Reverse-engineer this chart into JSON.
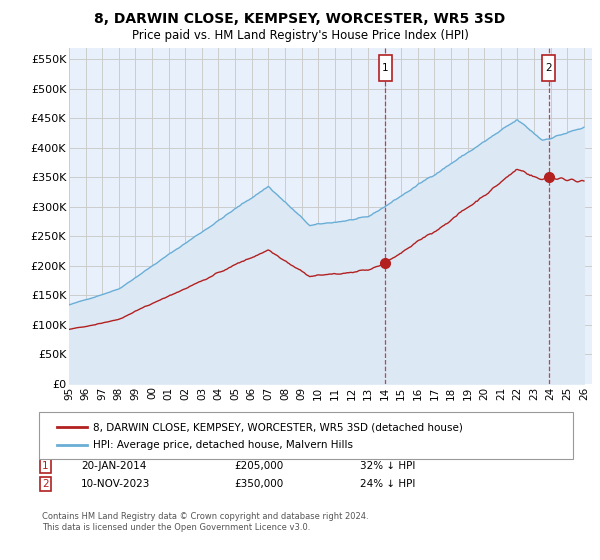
{
  "title": "8, DARWIN CLOSE, KEMPSEY, WORCESTER, WR5 3SD",
  "subtitle": "Price paid vs. HM Land Registry's House Price Index (HPI)",
  "ylabel_ticks": [
    "£0",
    "£50K",
    "£100K",
    "£150K",
    "£200K",
    "£250K",
    "£300K",
    "£350K",
    "£400K",
    "£450K",
    "£500K",
    "£550K"
  ],
  "ytick_values": [
    0,
    50000,
    100000,
    150000,
    200000,
    250000,
    300000,
    350000,
    400000,
    450000,
    500000,
    550000
  ],
  "ylim": [
    0,
    570000
  ],
  "xlim_start": 1995.0,
  "xlim_end": 2026.5,
  "hpi_color": "#6aaed6",
  "hpi_fill_color": "#dce9f5",
  "property_color": "#b22020",
  "point1_x": 2014.05,
  "point1_y": 205000,
  "point1_label": "1",
  "point2_x": 2023.87,
  "point2_y": 350000,
  "point2_label": "2",
  "vline1_x": 2014.05,
  "vline2_x": 2023.87,
  "legend_property": "8, DARWIN CLOSE, KEMPSEY, WORCESTER, WR5 3SD (detached house)",
  "legend_hpi": "HPI: Average price, detached house, Malvern Hills",
  "annotation1_date": "20-JAN-2014",
  "annotation1_price": "£205,000",
  "annotation1_hpi": "32% ↓ HPI",
  "annotation2_date": "10-NOV-2023",
  "annotation2_price": "£350,000",
  "annotation2_hpi": "24% ↓ HPI",
  "footer": "Contains HM Land Registry data © Crown copyright and database right 2024.\nThis data is licensed under the Open Government Licence v3.0.",
  "background_color": "#ffffff",
  "grid_color": "#cccccc",
  "plot_bg_color": "#e8f0fb"
}
